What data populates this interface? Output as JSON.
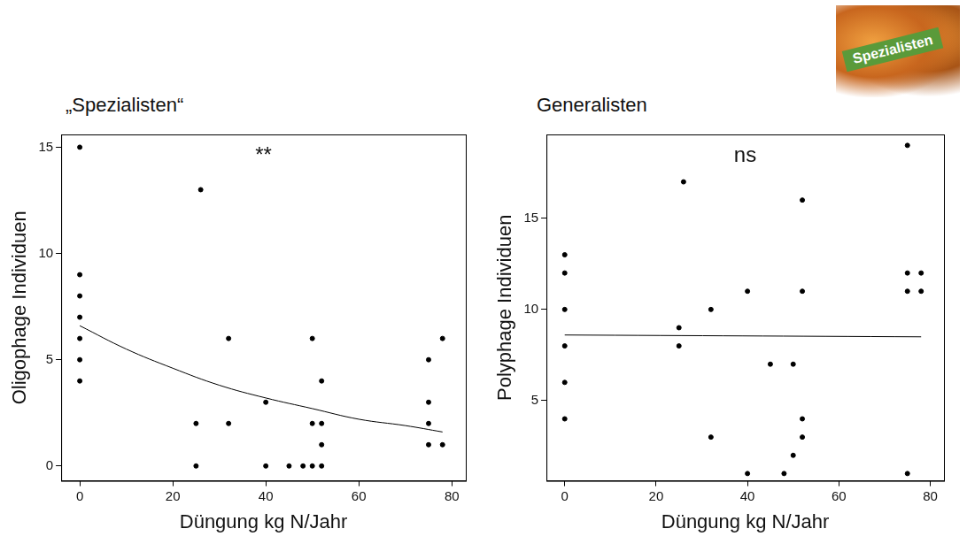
{
  "chart_data": [
    {
      "type": "scatter",
      "title": "„Spezialisten“",
      "annotation": "**",
      "x_label": "Düngung kg N/Jahr",
      "y_label": "Oligophage Individuen",
      "xlim": [
        -4,
        83
      ],
      "xticks": [
        0,
        20,
        40,
        60,
        80
      ],
      "ylim": [
        -0.7,
        15.6
      ],
      "yticks": [
        0,
        5,
        10,
        15
      ],
      "grid": false,
      "series": [
        {
          "type": "scatter",
          "color": "#000000",
          "marker": "circle",
          "x": [
            0,
            0,
            0,
            0,
            0,
            0,
            0,
            25,
            25,
            26,
            32,
            32,
            40,
            40,
            45,
            48,
            50,
            50,
            50,
            52,
            52,
            52,
            52,
            75,
            75,
            75,
            75,
            78,
            78
          ],
          "values": [
            15,
            9,
            8,
            7,
            6,
            5,
            4,
            2,
            0,
            13,
            6,
            2,
            3,
            0,
            0,
            0,
            6,
            2,
            0,
            4,
            2,
            1,
            0,
            5,
            3,
            2,
            1,
            6,
            1
          ]
        },
        {
          "type": "line",
          "color": "#000000",
          "line_style": "solid",
          "x": [
            0,
            10,
            20,
            30,
            40,
            50,
            60,
            70,
            78
          ],
          "values": [
            6.6,
            5.5,
            4.6,
            3.8,
            3.2,
            2.7,
            2.2,
            1.9,
            1.6
          ]
        }
      ]
    },
    {
      "type": "scatter",
      "title": "Generalisten",
      "annotation": "ns",
      "x_label": "Düngung kg N/Jahr",
      "y_label": "Polyphage Individuen",
      "xlim": [
        -4,
        83
      ],
      "xticks": [
        0,
        20,
        40,
        60,
        80
      ],
      "ylim": [
        0.6,
        19.6
      ],
      "yticks": [
        5,
        10,
        15
      ],
      "grid": false,
      "series": [
        {
          "type": "scatter",
          "color": "#000000",
          "marker": "circle",
          "x": [
            0,
            0,
            0,
            0,
            0,
            0,
            25,
            25,
            26,
            32,
            32,
            40,
            40,
            45,
            48,
            50,
            50,
            52,
            52,
            52,
            52,
            75,
            75,
            75,
            75,
            78,
            78
          ],
          "values": [
            13,
            12,
            10,
            8,
            6,
            4,
            9,
            8,
            17,
            10,
            3,
            11,
            1,
            7,
            1,
            7,
            2,
            16,
            11,
            4,
            3,
            19,
            12,
            11,
            1,
            12,
            11
          ]
        },
        {
          "type": "line",
          "color": "#000000",
          "line_style": "solid",
          "x": [
            0,
            78
          ],
          "values": [
            8.6,
            8.5
          ]
        }
      ]
    }
  ],
  "badge": "Spezialisten"
}
